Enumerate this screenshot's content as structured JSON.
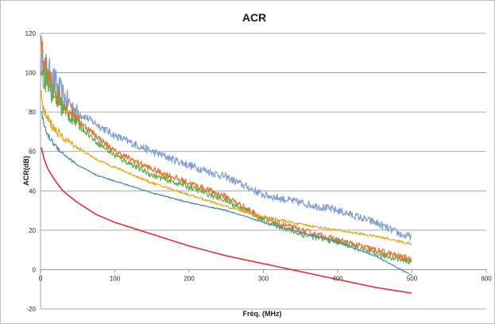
{
  "chart_data": {
    "type": "line",
    "title": "ACR",
    "xlabel": "Fréq. (MHz)",
    "ylabel": "ACR(dB)",
    "xlim": [
      0,
      600
    ],
    "ylim": [
      -20,
      120
    ],
    "x_ticks": [
      0,
      100,
      200,
      300,
      400,
      500,
      600
    ],
    "y_ticks": [
      -20,
      0,
      20,
      40,
      60,
      80,
      100,
      120
    ],
    "x_tick_labels": [
      "0",
      "100",
      "200",
      "300",
      "400",
      "500",
      "600"
    ],
    "y_tick_labels": [
      "-20",
      "0",
      "20",
      "40",
      "60",
      "80",
      "100",
      "120"
    ],
    "grid": "horizontal",
    "legend": "none",
    "series": [
      {
        "color": "#7f9fd4",
        "noise": 2.0,
        "x": [
          1,
          5,
          10,
          20,
          30,
          50,
          75,
          100,
          150,
          200,
          250,
          300,
          350,
          400,
          450,
          490,
          500
        ],
        "y": [
          108,
          102,
          99,
          94,
          88,
          80,
          74,
          68,
          60,
          53,
          47,
          38,
          34,
          30,
          24,
          17,
          17
        ]
      },
      {
        "color": "#e8702a",
        "noise": 1.6,
        "x": [
          1,
          5,
          10,
          20,
          30,
          50,
          75,
          100,
          150,
          200,
          250,
          300,
          350,
          400,
          450,
          500
        ],
        "y": [
          110,
          103,
          97,
          90,
          85,
          76,
          68,
          60,
          51,
          44,
          37,
          26,
          20,
          15,
          10,
          5
        ]
      },
      {
        "color": "#6aa84f",
        "noise": 1.5,
        "x": [
          1,
          5,
          10,
          20,
          30,
          50,
          75,
          100,
          150,
          200,
          250,
          300,
          350,
          400,
          450,
          500
        ],
        "y": [
          108,
          100,
          94,
          88,
          82,
          74,
          65,
          58,
          48,
          42,
          35,
          25,
          18,
          14,
          8,
          4
        ]
      },
      {
        "color": "#e8a81c",
        "noise": 0.6,
        "x": [
          1,
          5,
          10,
          20,
          30,
          50,
          75,
          100,
          150,
          200,
          250,
          300,
          350,
          400,
          450,
          500
        ],
        "y": [
          88,
          80,
          76,
          71,
          67,
          62,
          56,
          52,
          44,
          38,
          32,
          27,
          23,
          20,
          17,
          13
        ]
      },
      {
        "color": "#4f86c6",
        "noise": 0.3,
        "x": [
          1,
          5,
          10,
          20,
          30,
          50,
          75,
          100,
          150,
          200,
          250,
          300,
          350,
          400,
          450,
          500
        ],
        "y": [
          80,
          73,
          68,
          63,
          59,
          53,
          48,
          45,
          39,
          34,
          30,
          24,
          19,
          14,
          7,
          -3
        ]
      },
      {
        "color": "#e03030",
        "noise": 0,
        "x": [
          1,
          5,
          10,
          20,
          30,
          50,
          75,
          100,
          150,
          200,
          250,
          300,
          350,
          400,
          450,
          500
        ],
        "y": [
          62,
          56,
          51,
          45,
          40,
          34,
          28,
          24,
          18,
          12,
          7,
          3,
          -1,
          -5,
          -9,
          -12
        ]
      }
    ]
  }
}
